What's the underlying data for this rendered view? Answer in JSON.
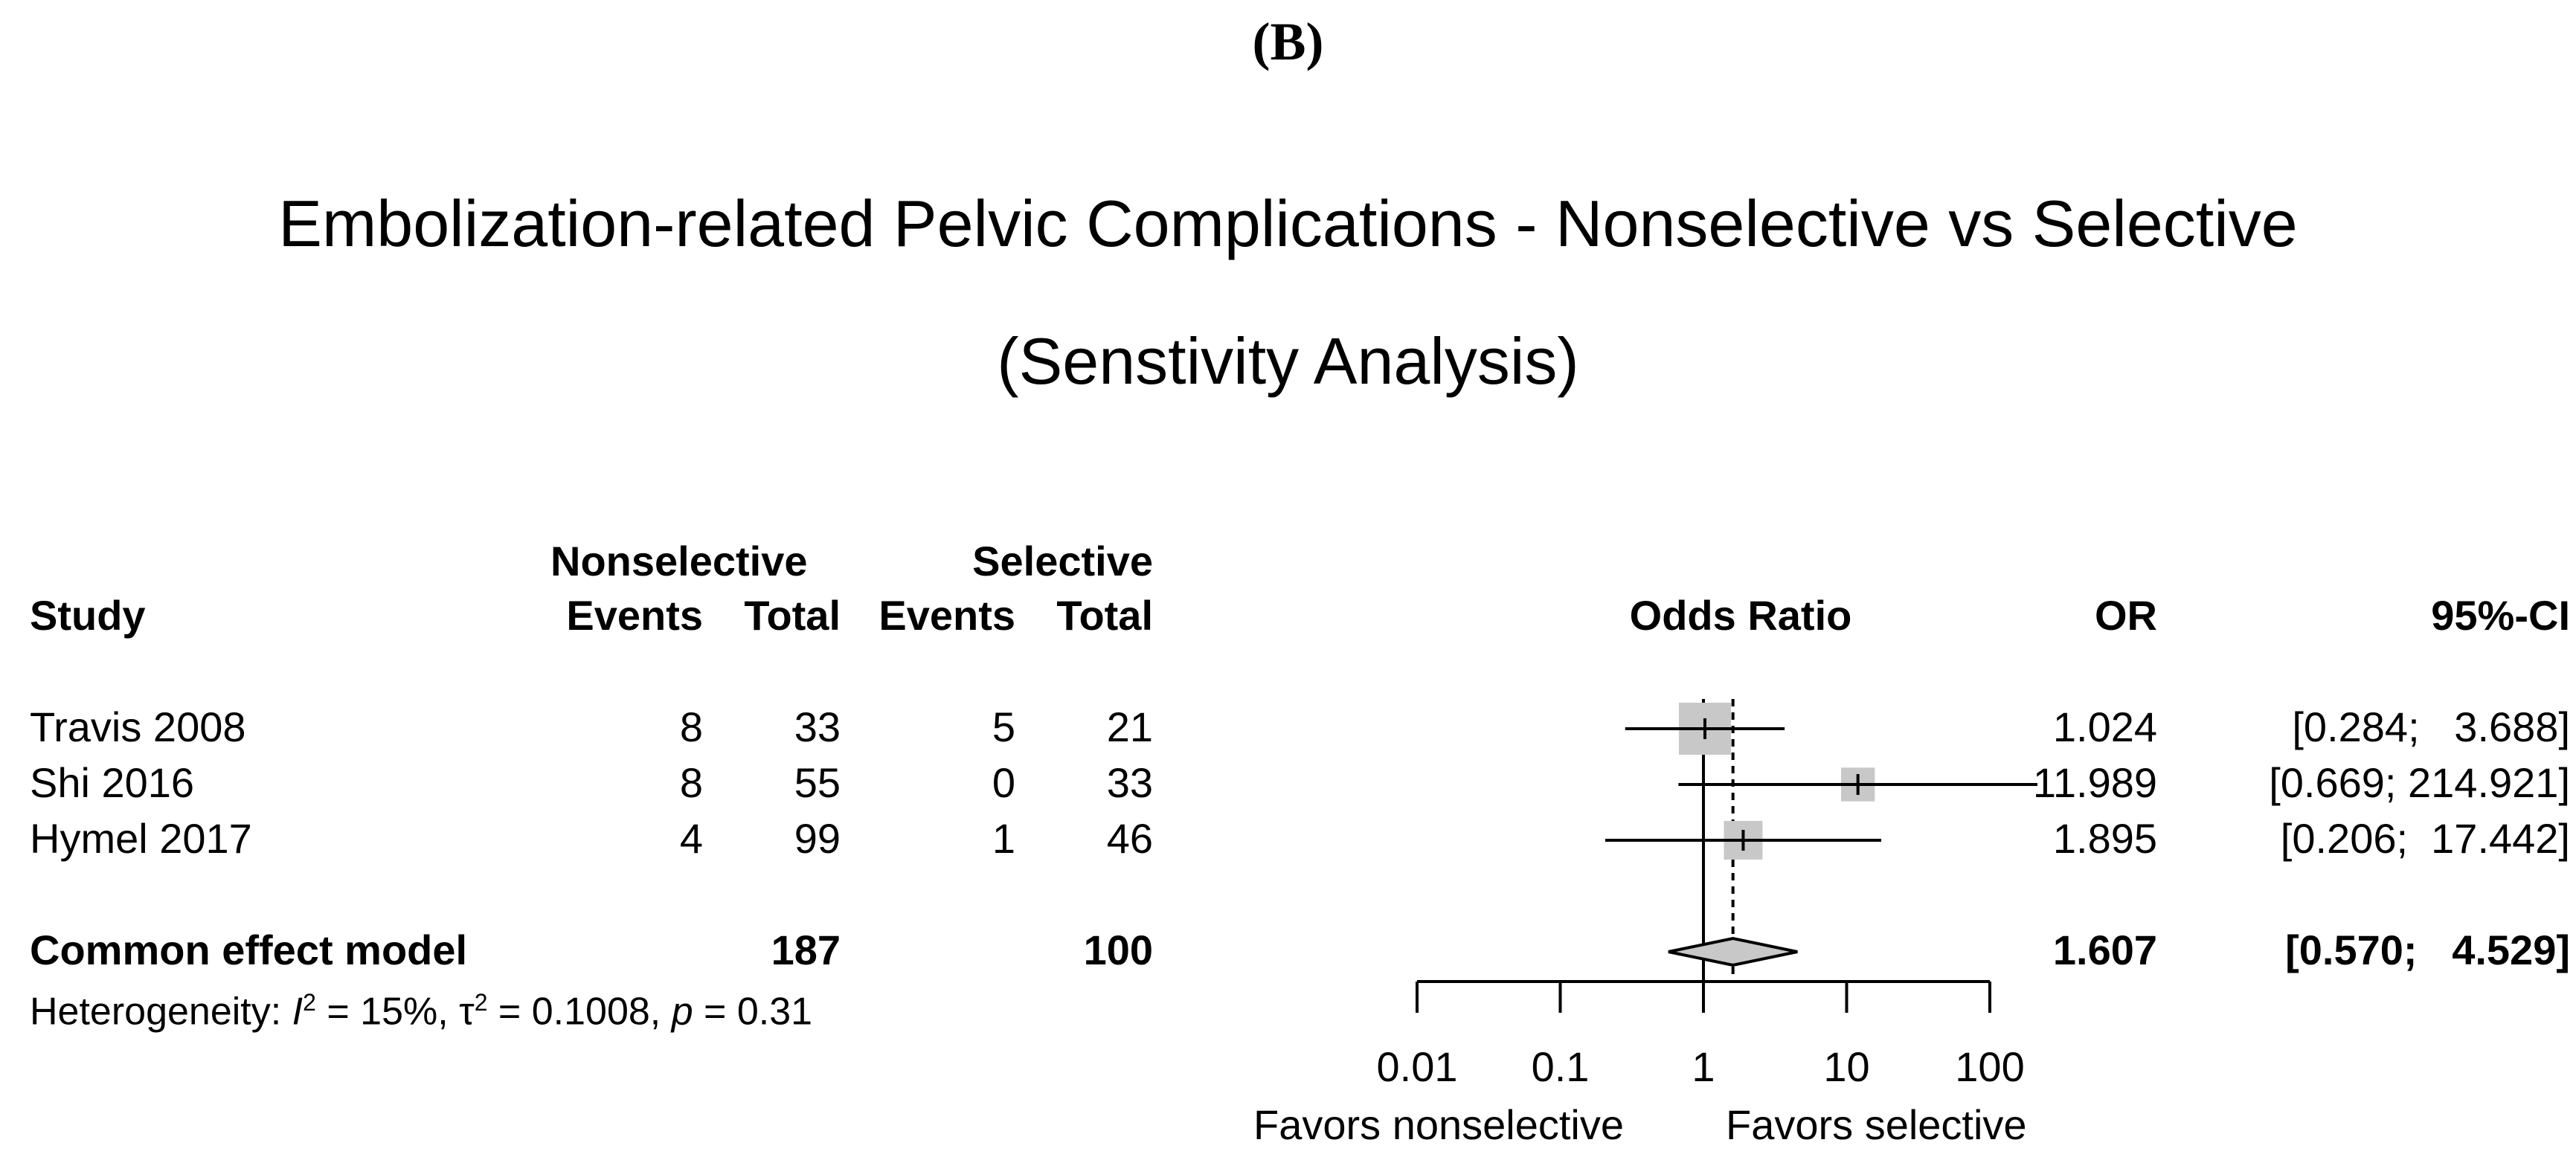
{
  "figure_label": "(B)",
  "chart_data": {
    "type": "forest",
    "title_line1": "Embolization-related Pelvic Complications - Nonselective vs Selective",
    "title_line2": "(Senstivity Analysis)",
    "headers": {
      "group1": "Nonselective",
      "group2": "Selective",
      "study": "Study",
      "events": "Events",
      "total": "Total",
      "effect": "Odds Ratio",
      "or": "OR",
      "ci": "95%-CI"
    },
    "studies": [
      {
        "name": "Travis 2008",
        "e1": "8",
        "t1": "33",
        "e2": "5",
        "t2": "21",
        "or": 1.024,
        "lower": 0.284,
        "upper": 3.688,
        "weight": 1.0,
        "or_text": "1.024",
        "ci_text": "[0.284;   3.688]"
      },
      {
        "name": "Shi 2016",
        "e1": "8",
        "t1": "55",
        "e2": "0",
        "t2": "33",
        "or": 11.989,
        "lower": 0.669,
        "upper": 214.921,
        "weight": 0.42,
        "or_text": "11.989",
        "ci_text": "[0.669; 214.921]"
      },
      {
        "name": "Hymel 2017",
        "e1": "4",
        "t1": "99",
        "e2": "1",
        "t2": "46",
        "or": 1.895,
        "lower": 0.206,
        "upper": 17.442,
        "weight": 0.55,
        "or_text": "1.895",
        "ci_text": "[0.206;  17.442]"
      }
    ],
    "pooled": {
      "name": "Common effect model",
      "t1": "187",
      "t2": "100",
      "or": 1.607,
      "lower": 0.57,
      "upper": 4.529,
      "or_text": "1.607",
      "ci_text": "[0.570;   4.529]"
    },
    "heterogeneity": {
      "prefix": "Heterogeneity: ",
      "i2_sym": "I",
      "i2_val": " = 15%, ",
      "tau_sym": "τ",
      "tau_val": " = 0.1008, ",
      "p_sym": "p",
      "p_val": " = 0.31",
      "sup": "2"
    },
    "axis": {
      "scale": "log",
      "min": 0.01,
      "max": 100,
      "ticks": [
        0.01,
        0.1,
        1,
        10,
        100
      ],
      "tick_labels": [
        "0.01",
        "0.1",
        "1",
        "10",
        "100"
      ],
      "null_value": 1
    },
    "favors_left": "Favors nonselective",
    "favors_right": "Favors selective",
    "colors": {
      "box": "#c8c8c8",
      "diamond": "#c8c8c8",
      "line": "#000000"
    }
  }
}
